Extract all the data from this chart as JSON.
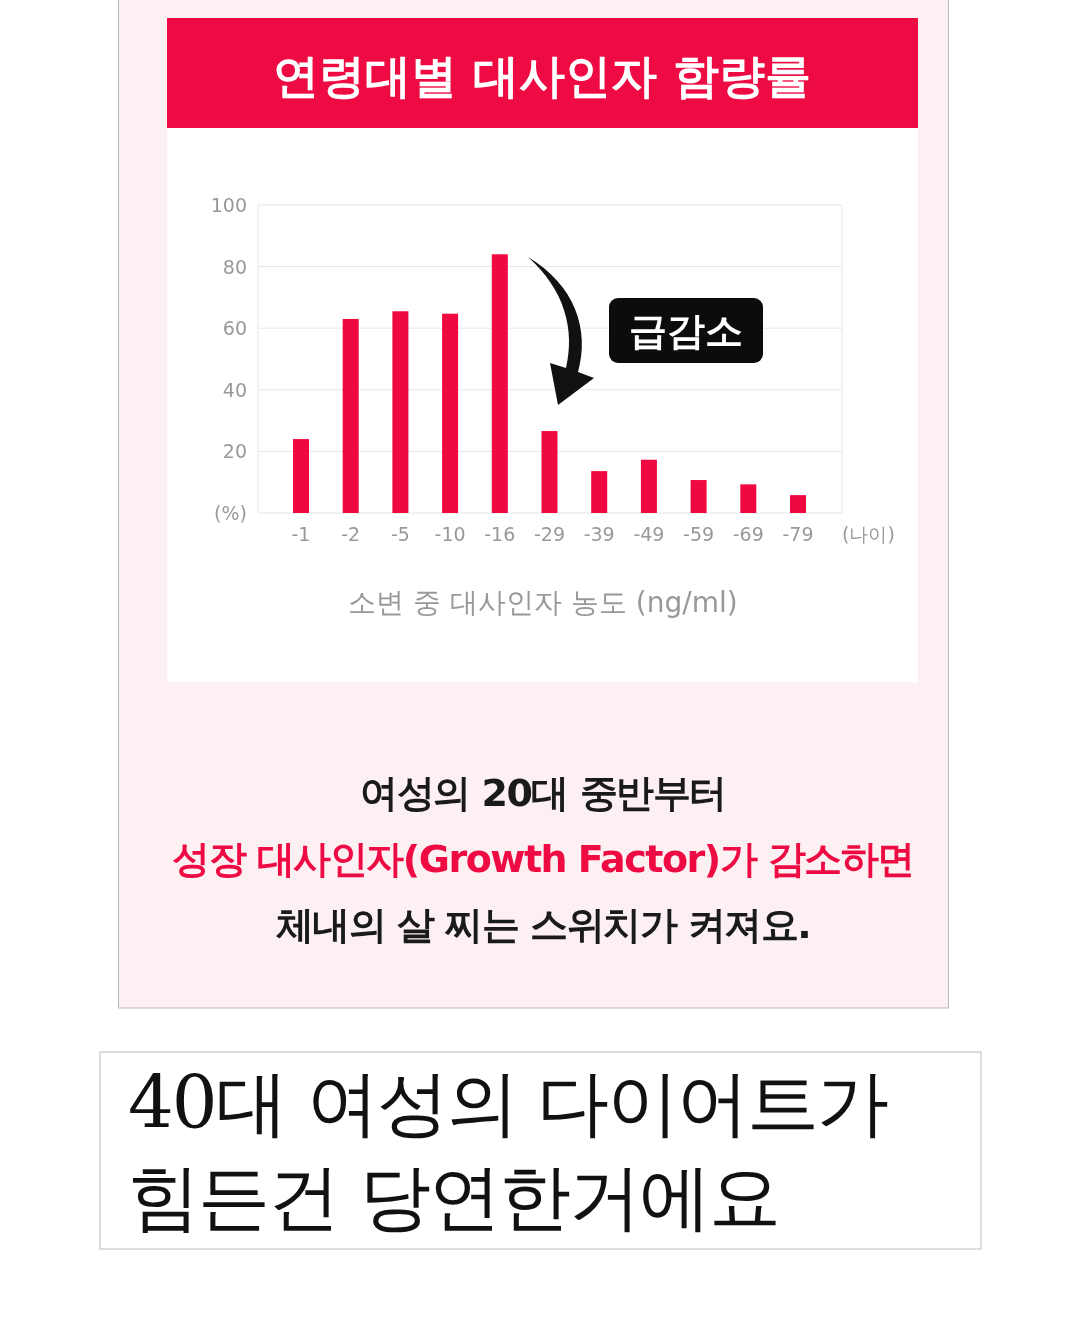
{
  "chart_data": {
    "type": "bar",
    "title": "연령대별 대사인자 함량률",
    "categories": [
      "-1",
      "-2",
      "-5",
      "-10",
      "-16",
      "-29",
      "-39",
      "-49",
      "-59",
      "-69",
      "-79"
    ],
    "values": [
      24,
      63,
      65.5,
      64.7,
      84,
      26.6,
      13.6,
      17.3,
      10.7,
      9.3,
      5.8
    ],
    "color": "#f00841",
    "xlabel": "소변 중 대사인자 농도 (ng/ml)",
    "ylim": [
      0,
      100
    ],
    "yticks": [
      {
        "value": 0,
        "label": "(%)"
      },
      20,
      40,
      60,
      80,
      100
    ],
    "grid": "y",
    "annotations": [
      "급감소",
      "(나이)",
      "여성의 20대 중반부터",
      "성장 대사인자(Growth Factor)가 감소하면",
      "체내의 살 찌는 스위치가 켜져요.",
      "40대 여성의 다이어트가 힘든건 당연한거에요"
    ]
  }
}
